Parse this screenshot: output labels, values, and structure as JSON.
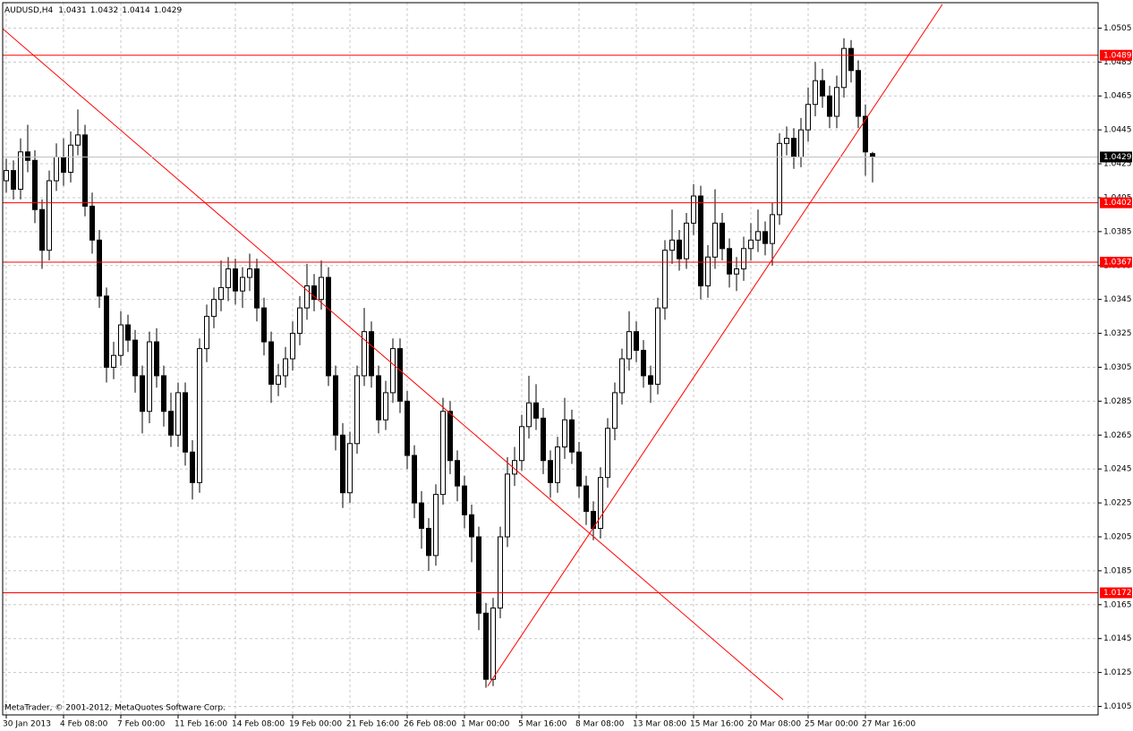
{
  "chart_data": {
    "type": "candlestick",
    "symbol": "AUDUSD,H4",
    "copyright": "MetaTrader, © 2001-2012, MetaQuotes Software Corp.",
    "categories": [
      "30 Jan 2013",
      null,
      null,
      null,
      null,
      null,
      null,
      null,
      "4 Feb 08:00",
      null,
      null,
      null,
      null,
      null,
      null,
      null,
      "7 Feb 00:00",
      null,
      null,
      null,
      null,
      null,
      null,
      null,
      "11 Feb 16:00",
      null,
      null,
      null,
      null,
      null,
      null,
      null,
      "14 Feb 08:00",
      null,
      null,
      null,
      null,
      null,
      null,
      null,
      "19 Feb 00:00",
      null,
      null,
      null,
      null,
      null,
      null,
      null,
      "21 Feb 16:00",
      null,
      null,
      null,
      null,
      null,
      null,
      null,
      "26 Feb 08:00",
      null,
      null,
      null,
      null,
      null,
      null,
      null,
      "1 Mar 00:00",
      null,
      null,
      null,
      null,
      null,
      null,
      null,
      "5 Mar 16:00",
      null,
      null,
      null,
      null,
      null,
      null,
      null,
      "8 Mar 08:00",
      null,
      null,
      null,
      null,
      null,
      null,
      null,
      "13 Mar 08:00",
      null,
      null,
      null,
      null,
      null,
      null,
      null,
      "15 Mar 16:00",
      null,
      null,
      null,
      null,
      null,
      null,
      null,
      "20 Mar 08:00",
      null,
      null,
      null,
      null,
      null,
      null,
      null,
      "25 Mar 00:00",
      null,
      null,
      null,
      null,
      null,
      null,
      null,
      "27 Mar 16:00",
      null
    ],
    "open": [
      1.0415,
      1.0421,
      1.041,
      1.0432,
      1.0427,
      1.0398,
      1.0374,
      1.0415,
      1.0429,
      1.042,
      1.0436,
      1.0442,
      1.04,
      1.038,
      1.0347,
      1.0305,
      1.0312,
      1.033,
      1.0321,
      1.03,
      1.0279,
      1.032,
      1.03,
      1.0279,
      1.0265,
      1.029,
      1.0255,
      1.0237,
      1.0316,
      1.0335,
      1.0345,
      1.0352,
      1.0363,
      1.035,
      1.0358,
      1.0363,
      1.034,
      1.032,
      1.0295,
      1.03,
      1.031,
      1.0325,
      1.034,
      1.0353,
      1.0345,
      1.0358,
      1.03,
      1.0265,
      1.0231,
      1.026,
      1.03,
      1.0326,
      1.03,
      1.0274,
      1.029,
      1.0316,
      1.0285,
      1.0253,
      1.0225,
      1.021,
      1.0194,
      1.023,
      1.0279,
      1.025,
      1.0235,
      1.0218,
      1.0205,
      1.016,
      1.0121,
      1.0163,
      1.0205,
      1.0242,
      1.025,
      1.027,
      1.0284,
      1.0275,
      1.025,
      1.0237,
      1.0258,
      1.0274,
      1.0255,
      1.0235,
      1.022,
      1.021,
      1.024,
      1.0269,
      1.029,
      1.031,
      1.0326,
      1.0315,
      1.03,
      1.0295,
      1.034,
      1.0374,
      1.038,
      1.0369,
      1.039,
      1.0406,
      1.0353,
      1.037,
      1.039,
      1.0375,
      1.036,
      1.0363,
      1.0375,
      1.038,
      1.0385,
      1.0378,
      1.0395,
      1.0437,
      1.044,
      1.0429,
      1.0445,
      1.046,
      1.0474,
      1.0465,
      1.0453,
      1.047,
      1.0493,
      1.048,
      1.0453,
      1.0431
    ],
    "high": [
      1.0428,
      1.0427,
      1.044,
      1.0448,
      1.0433,
      1.0404,
      1.0421,
      1.0437,
      1.044,
      1.0444,
      1.0457,
      1.0448,
      1.0408,
      1.0386,
      1.0352,
      1.032,
      1.0338,
      1.0336,
      1.0327,
      1.0306,
      1.0326,
      1.0328,
      1.0306,
      1.029,
      1.0296,
      1.0296,
      1.0262,
      1.0322,
      1.0342,
      1.0352,
      1.0368,
      1.037,
      1.0369,
      1.0364,
      1.0372,
      1.0369,
      1.0346,
      1.0326,
      1.0307,
      1.0317,
      1.0332,
      1.0347,
      1.0366,
      1.036,
      1.0368,
      1.0364,
      1.0306,
      1.0272,
      1.0267,
      1.0306,
      1.034,
      1.0332,
      1.0306,
      1.0297,
      1.0322,
      1.0322,
      1.0291,
      1.0259,
      1.0232,
      1.0216,
      1.0236,
      1.0287,
      1.0285,
      1.0256,
      1.0241,
      1.0224,
      1.0211,
      1.0166,
      1.0169,
      1.0211,
      1.0252,
      1.0258,
      1.0277,
      1.03,
      1.0295,
      1.0281,
      1.0256,
      1.0264,
      1.0287,
      1.028,
      1.0261,
      1.0241,
      1.0226,
      1.0246,
      1.0275,
      1.0296,
      1.0316,
      1.0338,
      1.0332,
      1.0321,
      1.0306,
      1.0346,
      1.038,
      1.0398,
      1.0386,
      1.0396,
      1.0413,
      1.0412,
      1.0377,
      1.041,
      1.0396,
      1.0381,
      1.037,
      1.0382,
      1.039,
      1.0398,
      1.0391,
      1.0402,
      1.0443,
      1.0447,
      1.0446,
      1.0452,
      1.047,
      1.0485,
      1.0481,
      1.0471,
      1.0477,
      1.0499,
      1.0498,
      1.0486,
      1.046,
      1.0432
    ],
    "low": [
      1.0408,
      1.0404,
      1.0404,
      1.042,
      1.039,
      1.0363,
      1.0368,
      1.0409,
      1.0412,
      1.0414,
      1.043,
      1.0394,
      1.0372,
      1.034,
      1.0296,
      1.0298,
      1.0306,
      1.0314,
      1.029,
      1.0266,
      1.0272,
      1.0293,
      1.027,
      1.0258,
      1.0258,
      1.0247,
      1.0227,
      1.0231,
      1.0308,
      1.0328,
      1.0338,
      1.0344,
      1.0342,
      1.034,
      1.035,
      1.0332,
      1.0312,
      1.0284,
      1.0288,
      1.0293,
      1.0303,
      1.0318,
      1.0333,
      1.0338,
      1.0339,
      1.0294,
      1.0256,
      1.0222,
      1.0225,
      1.0254,
      1.0294,
      1.0293,
      1.0266,
      1.0268,
      1.0284,
      1.0278,
      1.0245,
      1.0216,
      1.0198,
      1.0185,
      1.0188,
      1.0224,
      1.0242,
      1.0226,
      1.021,
      1.019,
      1.015,
      1.0116,
      1.0117,
      1.0157,
      1.0199,
      1.0235,
      1.0244,
      1.0263,
      1.0268,
      1.0242,
      1.0228,
      1.0231,
      1.0251,
      1.0248,
      1.0228,
      1.0212,
      1.0203,
      1.0204,
      1.0234,
      1.0262,
      1.0283,
      1.0303,
      1.0308,
      1.0293,
      1.0284,
      1.0289,
      1.0333,
      1.0366,
      1.0362,
      1.0363,
      1.0383,
      1.0345,
      1.0346,
      1.0363,
      1.0368,
      1.0352,
      1.035,
      1.0356,
      1.0368,
      1.0373,
      1.0371,
      1.0365,
      1.0389,
      1.043,
      1.0422,
      1.0423,
      1.0438,
      1.0453,
      1.0458,
      1.0446,
      1.0446,
      1.0464,
      1.0473,
      1.0446,
      1.0418,
      1.0414
    ],
    "close": [
      1.0421,
      1.041,
      1.0432,
      1.0427,
      1.0398,
      1.0374,
      1.0415,
      1.0429,
      1.042,
      1.0436,
      1.0442,
      1.04,
      1.038,
      1.0347,
      1.0305,
      1.0312,
      1.033,
      1.0321,
      1.03,
      1.0279,
      1.032,
      1.03,
      1.0279,
      1.0265,
      1.029,
      1.0255,
      1.0237,
      1.0316,
      1.0335,
      1.0345,
      1.0352,
      1.0363,
      1.035,
      1.0358,
      1.0363,
      1.034,
      1.032,
      1.0295,
      1.03,
      1.031,
      1.0325,
      1.034,
      1.0353,
      1.0345,
      1.0358,
      1.03,
      1.0265,
      1.0231,
      1.026,
      1.03,
      1.0326,
      1.03,
      1.0274,
      1.029,
      1.0316,
      1.0285,
      1.0253,
      1.0225,
      1.021,
      1.0194,
      1.023,
      1.0279,
      1.025,
      1.0235,
      1.0218,
      1.0205,
      1.016,
      1.0121,
      1.0163,
      1.0205,
      1.0242,
      1.025,
      1.027,
      1.0284,
      1.0275,
      1.025,
      1.0237,
      1.0258,
      1.0274,
      1.0255,
      1.0235,
      1.022,
      1.021,
      1.024,
      1.0269,
      1.029,
      1.031,
      1.0326,
      1.0315,
      1.03,
      1.0295,
      1.034,
      1.0374,
      1.038,
      1.0369,
      1.039,
      1.0406,
      1.0353,
      1.037,
      1.039,
      1.0375,
      1.036,
      1.0363,
      1.0375,
      1.038,
      1.0385,
      1.0378,
      1.0395,
      1.0437,
      1.044,
      1.0429,
      1.0445,
      1.046,
      1.0474,
      1.0465,
      1.0453,
      1.047,
      1.0493,
      1.048,
      1.0453,
      1.0432,
      1.0429
    ],
    "ylim": [
      1.01,
      1.052
    ],
    "yticks": [
      1.0105,
      1.0125,
      1.0145,
      1.0165,
      1.0185,
      1.0205,
      1.0225,
      1.0245,
      1.0265,
      1.0285,
      1.0305,
      1.0325,
      1.0345,
      1.0365,
      1.0385,
      1.0405,
      1.0425,
      1.0445,
      1.0465,
      1.0485,
      1.0505
    ],
    "grid": true,
    "levels": [
      1.0489,
      1.0402,
      1.0367,
      1.0172
    ],
    "level_color": "#ff0000",
    "trendlines": [
      {
        "from": {
          "index": -0.875,
          "price": 1.0506
        },
        "to": {
          "index": 108.5,
          "price": 1.0109
        }
      },
      {
        "from": {
          "index": 67.25,
          "price": 1.0117
        },
        "to": {
          "index": 130.75,
          "price": 1.0519
        }
      }
    ]
  }
}
